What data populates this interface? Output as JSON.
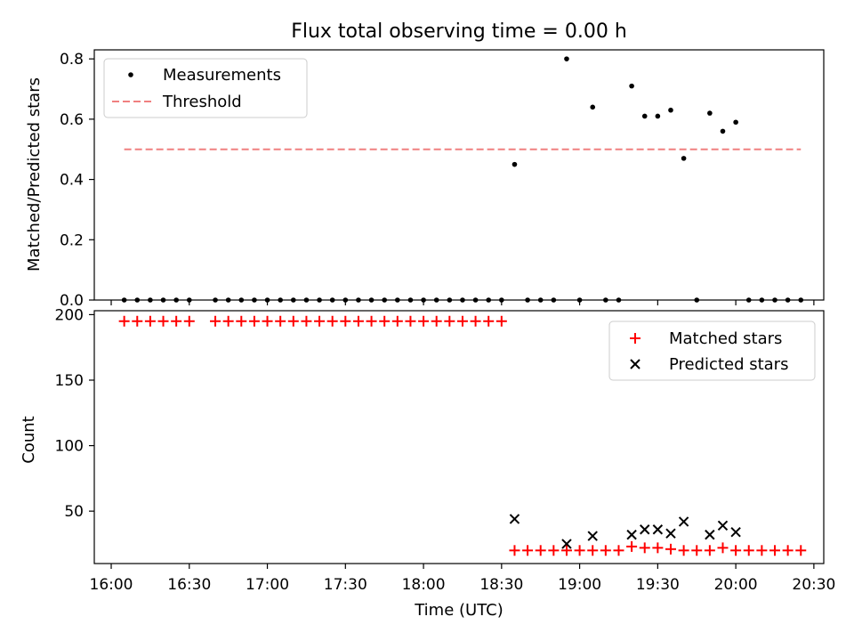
{
  "figure": {
    "title": "Flux total observing time = 0.00 h"
  },
  "chart_data": [
    {
      "type": "scatter",
      "ylabel": "Matched/Predicted stars",
      "xlabel": "",
      "xlim": [
        "16:00",
        "20:30"
      ],
      "ylim": [
        0,
        0.83
      ],
      "y_ticks": [
        "0.0",
        "0.2",
        "0.4",
        "0.6",
        "0.8"
      ],
      "legend": {
        "position": "top-left",
        "entries": [
          "Measurements",
          "Threshold"
        ]
      },
      "colors": {
        "measurements": "#000000",
        "threshold": "#f08080"
      },
      "threshold": {
        "name": "Threshold",
        "value": 0.5,
        "x_start": "16:05",
        "x_end": "20:25"
      },
      "series": [
        {
          "name": "Measurements",
          "x": [
            "16:05",
            "16:10",
            "16:15",
            "16:20",
            "16:25",
            "16:30",
            "16:40",
            "16:45",
            "16:50",
            "16:55",
            "17:00",
            "17:05",
            "17:10",
            "17:15",
            "17:20",
            "17:25",
            "17:30",
            "17:35",
            "17:40",
            "17:45",
            "17:50",
            "17:55",
            "18:00",
            "18:05",
            "18:10",
            "18:15",
            "18:20",
            "18:25",
            "18:30",
            "18:35",
            "18:40",
            "18:45",
            "18:50",
            "18:55",
            "19:00",
            "19:05",
            "19:10",
            "19:15",
            "19:20",
            "19:25",
            "19:30",
            "19:35",
            "19:40",
            "19:45",
            "19:50",
            "19:55",
            "20:00",
            "20:05",
            "20:10",
            "20:15",
            "20:20",
            "20:25"
          ],
          "y": [
            0,
            0,
            0,
            0,
            0,
            0,
            0,
            0,
            0,
            0,
            0,
            0,
            0,
            0,
            0,
            0,
            0,
            0,
            0,
            0,
            0,
            0,
            0,
            0,
            0,
            0,
            0,
            0,
            0,
            0.45,
            0,
            0,
            0,
            0.8,
            0,
            0.64,
            0,
            0,
            0.71,
            0.61,
            0.61,
            0.63,
            0.47,
            0,
            0.62,
            0.56,
            0.59,
            0,
            0,
            0,
            0,
            0
          ]
        }
      ]
    },
    {
      "type": "scatter",
      "xlabel": "Time (UTC)",
      "ylabel": "Count",
      "xlim": [
        "16:00",
        "20:30"
      ],
      "ylim": [
        10,
        203
      ],
      "x_ticks": [
        "16:00",
        "16:30",
        "17:00",
        "17:30",
        "18:00",
        "18:30",
        "19:00",
        "19:30",
        "20:00",
        "20:30"
      ],
      "y_ticks": [
        "50",
        "100",
        "150",
        "200"
      ],
      "legend": {
        "position": "top-right",
        "entries": [
          "Matched stars",
          "Predicted stars"
        ]
      },
      "colors": {
        "matched": "#ff0000",
        "predicted": "#000000"
      },
      "series": [
        {
          "name": "Matched stars",
          "x": [
            "16:05",
            "16:10",
            "16:15",
            "16:20",
            "16:25",
            "16:30",
            "16:40",
            "16:45",
            "16:50",
            "16:55",
            "17:00",
            "17:05",
            "17:10",
            "17:15",
            "17:20",
            "17:25",
            "17:30",
            "17:35",
            "17:40",
            "17:45",
            "17:50",
            "17:55",
            "18:00",
            "18:05",
            "18:10",
            "18:15",
            "18:20",
            "18:25",
            "18:30",
            "18:35",
            "18:40",
            "18:45",
            "18:50",
            "18:55",
            "19:00",
            "19:05",
            "19:10",
            "19:15",
            "19:20",
            "19:25",
            "19:30",
            "19:35",
            "19:40",
            "19:45",
            "19:50",
            "19:55",
            "20:00",
            "20:05",
            "20:10",
            "20:15",
            "20:20",
            "20:25"
          ],
          "y": [
            195,
            195,
            195,
            195,
            195,
            195,
            195,
            195,
            195,
            195,
            195,
            195,
            195,
            195,
            195,
            195,
            195,
            195,
            195,
            195,
            195,
            195,
            195,
            195,
            195,
            195,
            195,
            195,
            195,
            20,
            20,
            20,
            20,
            20,
            20,
            20,
            20,
            20,
            23,
            22,
            22,
            21,
            20,
            20,
            20,
            22,
            20,
            20,
            20,
            20,
            20,
            20
          ]
        },
        {
          "name": "Predicted stars",
          "x": [
            "18:35",
            "18:55",
            "19:05",
            "19:20",
            "19:25",
            "19:30",
            "19:35",
            "19:40",
            "19:50",
            "19:55",
            "20:00"
          ],
          "y": [
            44,
            25,
            31,
            32,
            36,
            36,
            33,
            42,
            32,
            39,
            34
          ]
        }
      ]
    }
  ]
}
